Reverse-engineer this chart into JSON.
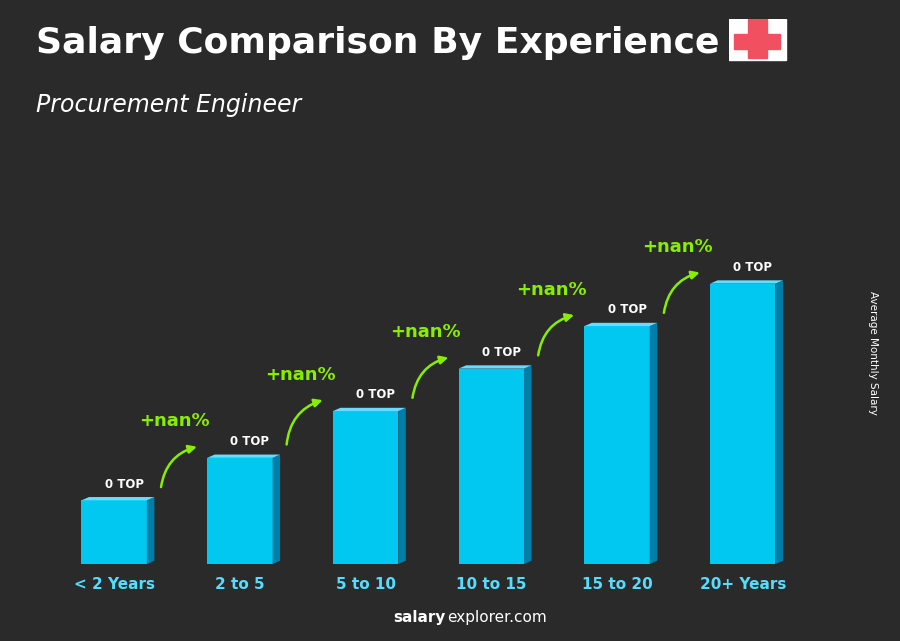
{
  "title": "Salary Comparison By Experience",
  "subtitle": "Procurement Engineer",
  "categories": [
    "< 2 Years",
    "2 to 5",
    "5 to 10",
    "10 to 15",
    "15 to 20",
    "20+ Years"
  ],
  "bar_color_front": "#00c8f0",
  "bar_color_side": "#007eaa",
  "bar_color_top": "#66ddff",
  "bar_labels": [
    "0 TOP",
    "0 TOP",
    "0 TOP",
    "0 TOP",
    "0 TOP",
    "0 TOP"
  ],
  "pct_labels": [
    "+nan%",
    "+nan%",
    "+nan%",
    "+nan%",
    "+nan%"
  ],
  "ylabel": "Average Monthly Salary",
  "watermark_bold": "salary",
  "watermark_normal": "explorer.com",
  "title_fontsize": 26,
  "subtitle_fontsize": 17,
  "bar_heights": [
    1.5,
    2.5,
    3.6,
    4.6,
    5.6,
    6.6
  ],
  "flag_red": "#f05060",
  "flag_white": "#ffffff",
  "pct_color": "#88ee00",
  "label_color": "#ffffff",
  "xlabel_color": "#55ddff"
}
